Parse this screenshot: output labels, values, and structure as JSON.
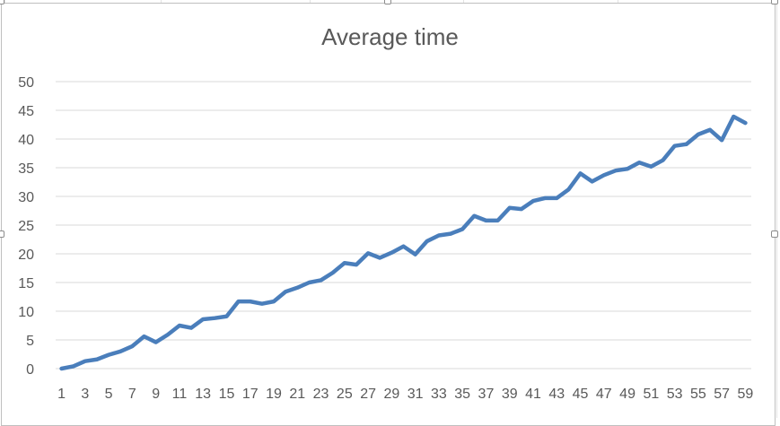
{
  "chart_data": {
    "type": "line",
    "title": "Average time",
    "xlabel": "",
    "ylabel": "",
    "ylim": [
      0,
      50
    ],
    "y_ticks": [
      0,
      5,
      10,
      15,
      20,
      25,
      30,
      35,
      40,
      45,
      50
    ],
    "x_tick_labels": [
      "1",
      "3",
      "5",
      "7",
      "9",
      "11",
      "13",
      "15",
      "17",
      "19",
      "21",
      "23",
      "25",
      "27",
      "29",
      "31",
      "33",
      "35",
      "37",
      "39",
      "41",
      "43",
      "45",
      "47",
      "49",
      "51",
      "53",
      "55",
      "57",
      "59"
    ],
    "grid": true,
    "legend": "none",
    "colors": {
      "series": "#4a7ebb",
      "grid": "#d9d9d9",
      "text": "#595959"
    },
    "series": [
      {
        "values": [
          0,
          0.4,
          1.3,
          1.6,
          2.4,
          3.0,
          3.9,
          5.6,
          4.6,
          5.9,
          7.5,
          7.1,
          8.6,
          8.8,
          9.1,
          11.7,
          11.7,
          11.3,
          11.7,
          13.4,
          14.1,
          15.0,
          15.4,
          16.7,
          18.4,
          18.1,
          20.1,
          19.3,
          20.2,
          21.3,
          19.9,
          22.2,
          23.2,
          23.5,
          24.3,
          26.6,
          25.8,
          25.8,
          28.0,
          27.8,
          29.2,
          29.7,
          29.7,
          31.2,
          34.0,
          32.6,
          33.7,
          34.5,
          34.8,
          35.9,
          35.2,
          36.3,
          38.8,
          39.1,
          40.8,
          41.6,
          39.8,
          43.9,
          42.8
        ]
      }
    ]
  }
}
